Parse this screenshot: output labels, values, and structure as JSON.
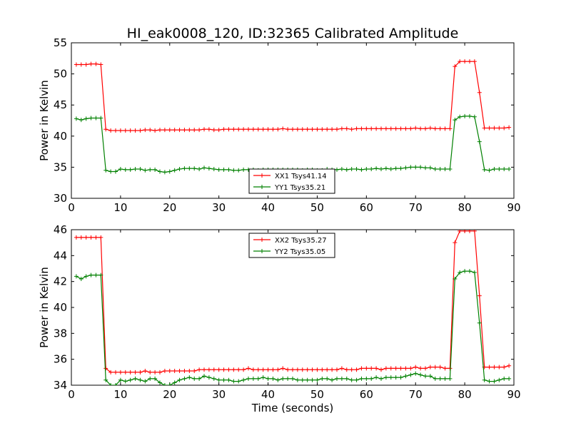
{
  "title": "HI_eak0008_120, ID:32365 Calibrated Amplitude",
  "chart_data": [
    {
      "type": "line",
      "xlabel": "",
      "ylabel": "Power in Kelvin",
      "xlim": [
        0,
        90
      ],
      "ylim": [
        30,
        55
      ],
      "xticks": [
        "0",
        "10",
        "20",
        "30",
        "40",
        "50",
        "60",
        "70",
        "80",
        "90"
      ],
      "yticks": [
        "30",
        "35",
        "40",
        "45",
        "50",
        "55"
      ],
      "legend_position": "lower-center",
      "series": [
        {
          "name": "XX1 Tsys41.14",
          "color": "#ff0000",
          "x": [
            1,
            2,
            3,
            4,
            5,
            6,
            7,
            8,
            9,
            10,
            11,
            12,
            13,
            14,
            15,
            16,
            17,
            18,
            19,
            20,
            21,
            22,
            23,
            24,
            25,
            26,
            27,
            28,
            29,
            30,
            31,
            32,
            33,
            34,
            35,
            36,
            37,
            38,
            39,
            40,
            41,
            42,
            43,
            44,
            45,
            46,
            47,
            48,
            49,
            50,
            51,
            52,
            53,
            54,
            55,
            56,
            57,
            58,
            59,
            60,
            61,
            62,
            63,
            64,
            65,
            66,
            67,
            68,
            69,
            70,
            71,
            72,
            73,
            74,
            75,
            76,
            77,
            78,
            79,
            80,
            81,
            82,
            83,
            84,
            85,
            86,
            87,
            88,
            89
          ],
          "y": [
            51.5,
            51.5,
            51.5,
            51.6,
            51.6,
            51.5,
            41.1,
            40.9,
            40.9,
            40.9,
            40.9,
            40.9,
            40.9,
            40.9,
            41.0,
            41.0,
            40.9,
            41.0,
            41.0,
            41.0,
            41.0,
            41.0,
            41.0,
            41.0,
            41.0,
            41.0,
            41.1,
            41.1,
            41.0,
            41.0,
            41.1,
            41.1,
            41.1,
            41.1,
            41.1,
            41.1,
            41.1,
            41.1,
            41.1,
            41.1,
            41.1,
            41.1,
            41.2,
            41.1,
            41.1,
            41.1,
            41.1,
            41.1,
            41.1,
            41.1,
            41.1,
            41.1,
            41.1,
            41.1,
            41.2,
            41.2,
            41.1,
            41.2,
            41.2,
            41.2,
            41.2,
            41.2,
            41.2,
            41.2,
            41.2,
            41.2,
            41.2,
            41.2,
            41.2,
            41.3,
            41.2,
            41.2,
            41.3,
            41.2,
            41.2,
            41.2,
            41.2,
            51.2,
            52.0,
            52.0,
            52.0,
            52.0,
            47.0,
            41.3,
            41.3,
            41.3,
            41.3,
            41.3,
            41.4
          ]
        },
        {
          "name": "YY1 Tsys35.21",
          "color": "#008000",
          "x": [
            1,
            2,
            3,
            4,
            5,
            6,
            7,
            8,
            9,
            10,
            11,
            12,
            13,
            14,
            15,
            16,
            17,
            18,
            19,
            20,
            21,
            22,
            23,
            24,
            25,
            26,
            27,
            28,
            29,
            30,
            31,
            32,
            33,
            34,
            35,
            36,
            37,
            38,
            39,
            40,
            41,
            42,
            43,
            44,
            45,
            46,
            47,
            48,
            49,
            50,
            51,
            52,
            53,
            54,
            55,
            56,
            57,
            58,
            59,
            60,
            61,
            62,
            63,
            64,
            65,
            66,
            67,
            68,
            69,
            70,
            71,
            72,
            73,
            74,
            75,
            76,
            77,
            78,
            79,
            80,
            81,
            82,
            83,
            84,
            85,
            86,
            87,
            88,
            89
          ],
          "y": [
            42.8,
            42.6,
            42.8,
            42.9,
            42.9,
            42.9,
            34.5,
            34.3,
            34.3,
            34.7,
            34.6,
            34.6,
            34.7,
            34.7,
            34.5,
            34.6,
            34.6,
            34.3,
            34.2,
            34.3,
            34.5,
            34.7,
            34.8,
            34.8,
            34.8,
            34.7,
            34.9,
            34.8,
            34.7,
            34.6,
            34.6,
            34.6,
            34.5,
            34.5,
            34.6,
            34.6,
            34.6,
            34.5,
            34.6,
            34.6,
            34.6,
            34.6,
            34.6,
            34.6,
            34.6,
            34.6,
            34.5,
            34.6,
            34.6,
            34.5,
            34.5,
            34.7,
            34.6,
            34.6,
            34.7,
            34.6,
            34.7,
            34.7,
            34.6,
            34.7,
            34.7,
            34.8,
            34.7,
            34.8,
            34.7,
            34.8,
            34.8,
            34.9,
            35.0,
            35.0,
            35.0,
            34.9,
            34.9,
            34.7,
            34.7,
            34.7,
            34.7,
            42.6,
            43.1,
            43.2,
            43.2,
            43.1,
            39.1,
            34.6,
            34.5,
            34.7,
            34.7,
            34.7,
            34.7
          ]
        }
      ]
    },
    {
      "type": "line",
      "xlabel": "Time (seconds)",
      "ylabel": "Power in Kelvin",
      "xlim": [
        0,
        90
      ],
      "ylim": [
        34,
        46
      ],
      "xticks": [
        "0",
        "10",
        "20",
        "30",
        "40",
        "50",
        "60",
        "70",
        "80",
        "90"
      ],
      "yticks": [
        "34",
        "36",
        "38",
        "40",
        "42",
        "44",
        "46"
      ],
      "legend_position": "upper-center",
      "series": [
        {
          "name": "XX2 Tsys35.27",
          "color": "#ff0000",
          "x": [
            1,
            2,
            3,
            4,
            5,
            6,
            7,
            8,
            9,
            10,
            11,
            12,
            13,
            14,
            15,
            16,
            17,
            18,
            19,
            20,
            21,
            22,
            23,
            24,
            25,
            26,
            27,
            28,
            29,
            30,
            31,
            32,
            33,
            34,
            35,
            36,
            37,
            38,
            39,
            40,
            41,
            42,
            43,
            44,
            45,
            46,
            47,
            48,
            49,
            50,
            51,
            52,
            53,
            54,
            55,
            56,
            57,
            58,
            59,
            60,
            61,
            62,
            63,
            64,
            65,
            66,
            67,
            68,
            69,
            70,
            71,
            72,
            73,
            74,
            75,
            76,
            77,
            78,
            79,
            80,
            81,
            82,
            83,
            84,
            85,
            86,
            87,
            88,
            89
          ],
          "y": [
            45.4,
            45.4,
            45.4,
            45.4,
            45.4,
            45.4,
            35.3,
            35.0,
            35.0,
            35.0,
            35.0,
            35.0,
            35.0,
            35.0,
            35.1,
            35.0,
            35.0,
            35.0,
            35.1,
            35.1,
            35.1,
            35.1,
            35.1,
            35.1,
            35.1,
            35.2,
            35.2,
            35.2,
            35.2,
            35.2,
            35.2,
            35.2,
            35.2,
            35.2,
            35.2,
            35.3,
            35.2,
            35.2,
            35.2,
            35.2,
            35.2,
            35.2,
            35.3,
            35.2,
            35.2,
            35.2,
            35.2,
            35.2,
            35.2,
            35.2,
            35.2,
            35.2,
            35.2,
            35.2,
            35.3,
            35.2,
            35.2,
            35.2,
            35.3,
            35.3,
            35.3,
            35.3,
            35.2,
            35.3,
            35.3,
            35.3,
            35.3,
            35.3,
            35.3,
            35.4,
            35.3,
            35.3,
            35.4,
            35.4,
            35.4,
            35.3,
            35.3,
            45.0,
            45.9,
            45.9,
            45.9,
            45.9,
            40.9,
            35.4,
            35.4,
            35.4,
            35.4,
            35.4,
            35.5
          ]
        },
        {
          "name": "YY2 Tsys35.05",
          "color": "#008000",
          "x": [
            1,
            2,
            3,
            4,
            5,
            6,
            7,
            8,
            9,
            10,
            11,
            12,
            13,
            14,
            15,
            16,
            17,
            18,
            19,
            20,
            21,
            22,
            23,
            24,
            25,
            26,
            27,
            28,
            29,
            30,
            31,
            32,
            33,
            34,
            35,
            36,
            37,
            38,
            39,
            40,
            41,
            42,
            43,
            44,
            45,
            46,
            47,
            48,
            49,
            50,
            51,
            52,
            53,
            54,
            55,
            56,
            57,
            58,
            59,
            60,
            61,
            62,
            63,
            64,
            65,
            66,
            67,
            68,
            69,
            70,
            71,
            72,
            73,
            74,
            75,
            76,
            77,
            78,
            79,
            80,
            81,
            82,
            83,
            84,
            85,
            86,
            87,
            88,
            89
          ],
          "y": [
            42.4,
            42.2,
            42.4,
            42.5,
            42.5,
            42.5,
            34.4,
            34.0,
            34.0,
            34.4,
            34.3,
            34.4,
            34.5,
            34.4,
            34.3,
            34.5,
            34.5,
            34.2,
            34.0,
            34.0,
            34.2,
            34.4,
            34.5,
            34.6,
            34.5,
            34.5,
            34.7,
            34.6,
            34.5,
            34.4,
            34.4,
            34.4,
            34.3,
            34.3,
            34.4,
            34.5,
            34.5,
            34.5,
            34.6,
            34.5,
            34.5,
            34.4,
            34.5,
            34.5,
            34.5,
            34.4,
            34.4,
            34.4,
            34.4,
            34.4,
            34.5,
            34.5,
            34.4,
            34.5,
            34.5,
            34.5,
            34.4,
            34.4,
            34.5,
            34.5,
            34.5,
            34.6,
            34.5,
            34.6,
            34.6,
            34.6,
            34.6,
            34.7,
            34.8,
            34.9,
            34.8,
            34.7,
            34.7,
            34.5,
            34.5,
            34.5,
            34.5,
            42.2,
            42.7,
            42.8,
            42.8,
            42.7,
            38.8,
            34.4,
            34.3,
            34.3,
            34.4,
            34.5,
            34.5
          ]
        }
      ]
    }
  ]
}
